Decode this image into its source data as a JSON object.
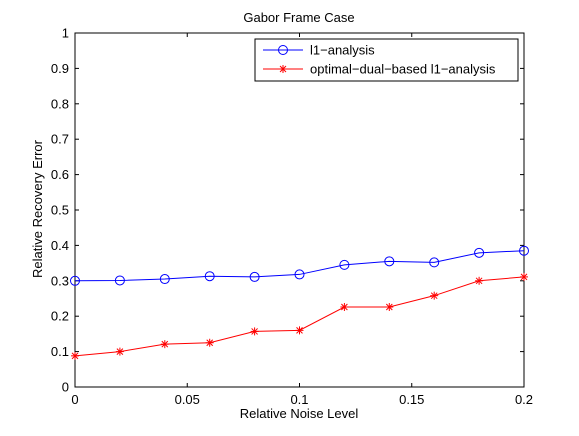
{
  "chart_data": {
    "type": "line",
    "title": "Gabor Frame Case",
    "xlabel": "Relative Noise Level",
    "ylabel": "Relative Recovery Error",
    "xlim": [
      0,
      0.2
    ],
    "ylim": [
      0,
      1
    ],
    "grid": false,
    "legend_position": "top-right",
    "x_ticks": [
      "0",
      "0.05",
      "0.1",
      "0.15",
      "0.2"
    ],
    "y_ticks": [
      "0",
      "0.1",
      "0.2",
      "0.3",
      "0.4",
      "0.5",
      "0.6",
      "0.7",
      "0.8",
      "0.9",
      "1"
    ],
    "x": [
      0,
      0.02,
      0.04,
      0.06,
      0.08,
      0.1,
      0.12,
      0.14,
      0.16,
      0.18,
      0.2
    ],
    "series": [
      {
        "name": "l1−analysis",
        "color": "#0000ff",
        "marker": "circle",
        "values": [
          0.3,
          0.301,
          0.305,
          0.313,
          0.311,
          0.318,
          0.345,
          0.355,
          0.352,
          0.379,
          0.385
        ]
      },
      {
        "name": "optimal−dual−based l1−analysis",
        "color": "#ff0000",
        "marker": "asterisk",
        "values": [
          0.088,
          0.1,
          0.121,
          0.125,
          0.157,
          0.16,
          0.226,
          0.226,
          0.258,
          0.3,
          0.311
        ]
      }
    ]
  }
}
